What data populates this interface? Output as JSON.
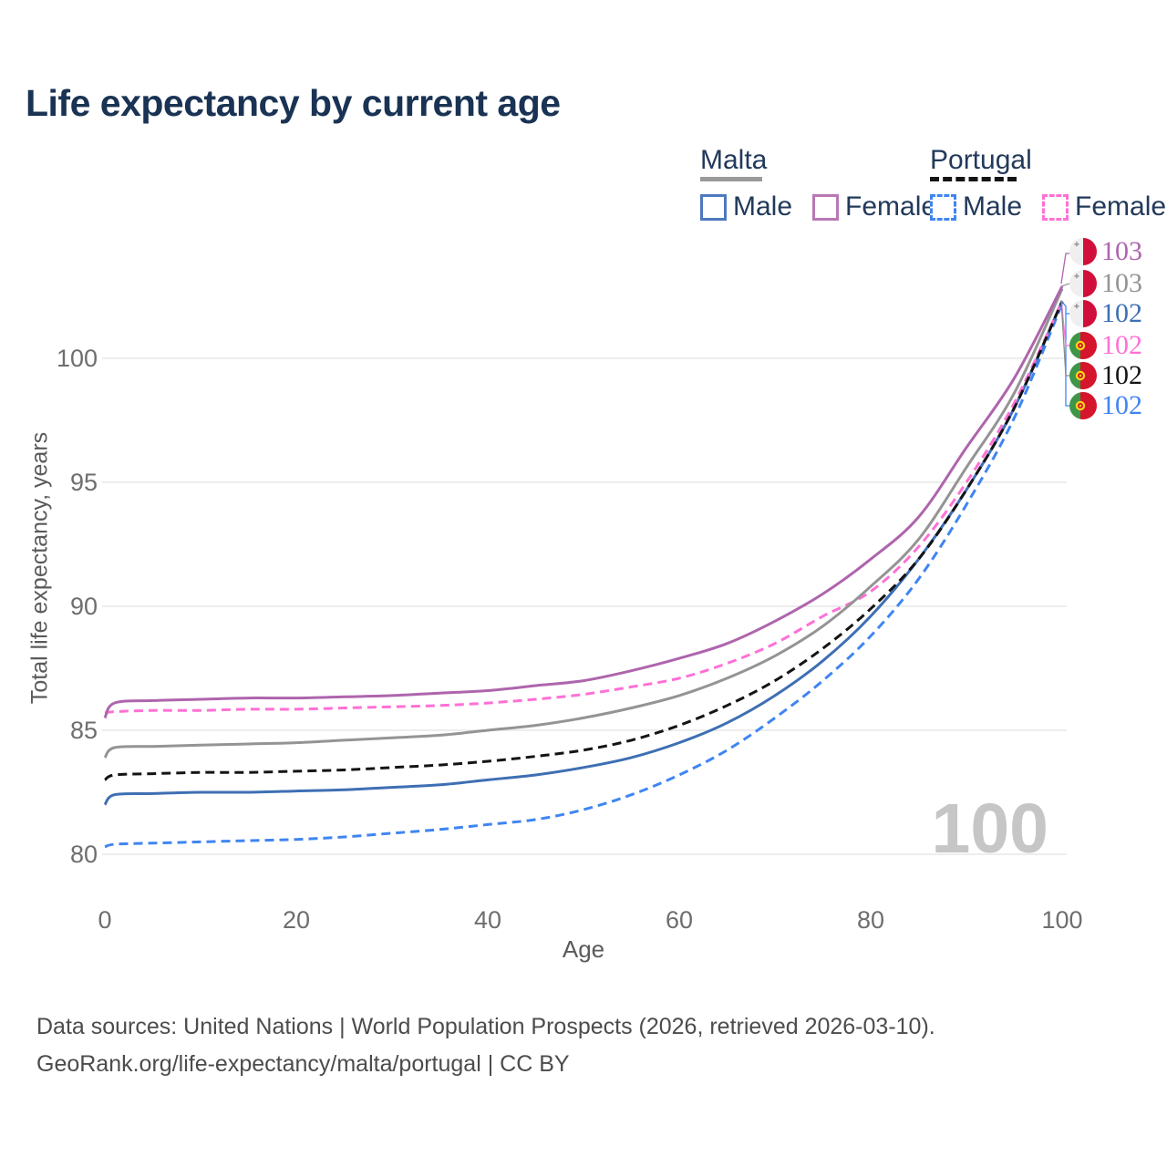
{
  "title": "Life expectancy by current age",
  "legend": {
    "groups": [
      {
        "title": "Malta",
        "line_style": "solid",
        "line_color": "#999999",
        "items": [
          {
            "label": "Male",
            "box_style": "solid",
            "box_color": "#4d79bd"
          },
          {
            "label": "Female",
            "box_style": "solid",
            "box_color": "#b878b4"
          }
        ]
      },
      {
        "title": "Portugal",
        "line_style": "dashed",
        "line_color": "#141414",
        "items": [
          {
            "label": "Male",
            "box_style": "dashed",
            "box_color": "#3f85f2"
          },
          {
            "label": "Female",
            "box_style": "dashed",
            "box_color": "#ff70d6"
          }
        ]
      }
    ]
  },
  "chart_data": {
    "type": "line",
    "title": "Life expectancy by current age",
    "xlabel": "Age",
    "ylabel": "Total life expectancy, years",
    "x_ticks": [
      0,
      20,
      40,
      60,
      80,
      100
    ],
    "y_ticks": [
      80,
      85,
      90,
      95,
      100
    ],
    "xlim": [
      0,
      100
    ],
    "ylim": [
      79,
      103.5
    ],
    "grid": "horizontal",
    "legend_position": "top-right",
    "watermark": "100",
    "x": [
      0,
      1,
      5,
      10,
      15,
      20,
      25,
      30,
      35,
      40,
      45,
      50,
      55,
      60,
      65,
      70,
      75,
      80,
      85,
      90,
      95,
      100
    ],
    "series": [
      {
        "name": "Malta Female",
        "country": "Malta",
        "sex": "Female",
        "style": "solid",
        "color": "#ae65ad",
        "end_label": "103",
        "values": [
          85.5,
          86.1,
          86.2,
          86.25,
          86.3,
          86.3,
          86.35,
          86.4,
          86.5,
          86.6,
          86.8,
          87.0,
          87.4,
          87.9,
          88.5,
          89.4,
          90.5,
          91.9,
          93.6,
          96.4,
          99.2,
          102.9
        ]
      },
      {
        "name": "Malta",
        "country": "Malta",
        "sex": "All",
        "style": "solid",
        "color": "#949494",
        "end_label": "103",
        "values": [
          83.9,
          84.3,
          84.35,
          84.4,
          84.45,
          84.5,
          84.6,
          84.7,
          84.8,
          85.0,
          85.2,
          85.5,
          85.9,
          86.4,
          87.1,
          88.0,
          89.2,
          90.8,
          92.7,
          95.6,
          98.6,
          102.8
        ]
      },
      {
        "name": "Malta Male",
        "country": "Malta",
        "sex": "Male",
        "style": "solid",
        "color": "#3e6fb3",
        "end_label": "102",
        "values": [
          82.0,
          82.4,
          82.45,
          82.5,
          82.5,
          82.55,
          82.6,
          82.7,
          82.8,
          83.0,
          83.2,
          83.5,
          83.9,
          84.5,
          85.3,
          86.4,
          87.8,
          89.6,
          91.9,
          94.7,
          98.0,
          102.3
        ]
      },
      {
        "name": "Portugal Female",
        "country": "Portugal",
        "sex": "Female",
        "style": "dashed",
        "color": "#ff70d6",
        "end_label": "102",
        "values": [
          85.7,
          85.75,
          85.8,
          85.8,
          85.85,
          85.85,
          85.9,
          85.95,
          86.0,
          86.1,
          86.25,
          86.45,
          86.75,
          87.1,
          87.7,
          88.5,
          89.6,
          90.6,
          92.4,
          95.0,
          98.2,
          102.3
        ]
      },
      {
        "name": "Portugal",
        "country": "Portugal",
        "sex": "All",
        "style": "dashed",
        "color": "#141414",
        "end_label": "102",
        "values": [
          83.0,
          83.2,
          83.25,
          83.3,
          83.3,
          83.35,
          83.4,
          83.5,
          83.6,
          83.75,
          83.95,
          84.2,
          84.6,
          85.2,
          86.0,
          87.0,
          88.3,
          89.9,
          91.9,
          94.7,
          98.0,
          102.3
        ]
      },
      {
        "name": "Portugal Male",
        "country": "Portugal",
        "sex": "Male",
        "style": "dashed",
        "color": "#3f85f2",
        "end_label": "102",
        "values": [
          80.3,
          80.4,
          80.45,
          80.5,
          80.55,
          80.6,
          80.7,
          80.85,
          81.0,
          81.2,
          81.4,
          81.8,
          82.4,
          83.2,
          84.2,
          85.5,
          87.0,
          88.8,
          91.1,
          94.1,
          97.6,
          102.2
        ]
      }
    ]
  },
  "flag_colors": {
    "malta_white": "#efefef",
    "malta_red": "#d0103a",
    "malta_cross": "#9a9a9a",
    "portugal_green": "#3d9548",
    "portugal_red": "#d5152c",
    "portugal_yellow": "#ffd417"
  },
  "footer": {
    "line1": "Data sources: United Nations | World Population Prospects (2026, retrieved 2026-03-10).",
    "line2": "GeoRank.org/life-expectancy/malta/portugal | CC BY"
  }
}
